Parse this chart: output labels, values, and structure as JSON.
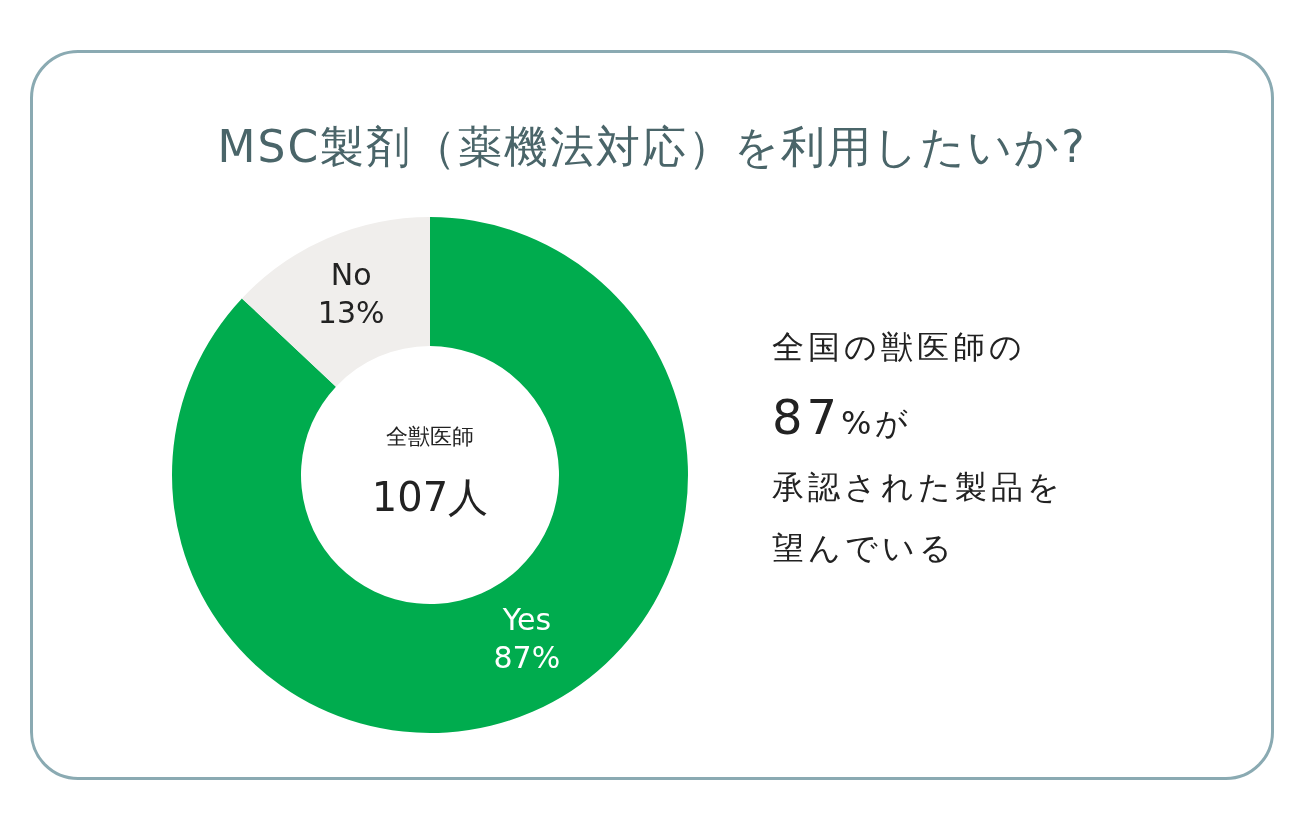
{
  "chart_data": {
    "type": "donut",
    "title": "MSC製剤（薬機法対応）を利用したいか?",
    "categories": [
      "Yes",
      "No"
    ],
    "values": [
      87,
      13
    ],
    "value_labels": [
      "87%",
      "13%"
    ],
    "colors": [
      "#00ac4e",
      "#f0eeec"
    ],
    "legend": false,
    "annotations": [
      "全獣医師",
      "107人",
      "全国の獣医師の",
      "87%が",
      "承認された製品を",
      "望んでいる"
    ]
  }
}
